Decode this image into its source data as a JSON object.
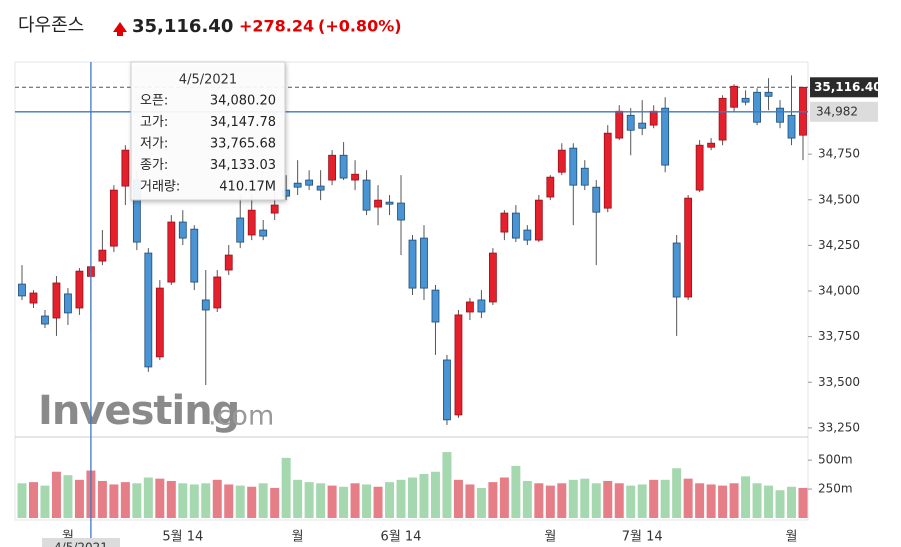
{
  "header": {
    "title": "다우존스",
    "change": "+278.24",
    "change_pct": "(+0.80%)"
  },
  "chart_data": {
    "type": "candlestick",
    "last_price": {
      "value": 35116.4,
      "label": "35,116.40"
    },
    "crosshair": {
      "value": 34982,
      "label": "34,982"
    },
    "tooltip": {
      "date": "4/5/2021",
      "rows": [
        {
          "label": "오픈:",
          "value": "34,080.20"
        },
        {
          "label": "고가:",
          "value": "34,147.78"
        },
        {
          "label": "저가:",
          "value": "33,765.68"
        },
        {
          "label": "종가:",
          "value": "34,133.03"
        },
        {
          "label": "거래량:",
          "value": "410.17M"
        }
      ]
    },
    "watermark": [
      "Investing",
      ".com"
    ],
    "categories": [
      null,
      null,
      null,
      null,
      "월",
      null,
      null,
      null,
      null,
      null,
      null,
      null,
      null,
      null,
      "5월 14",
      null,
      null,
      null,
      null,
      null,
      null,
      null,
      null,
      null,
      "월",
      null,
      null,
      null,
      null,
      null,
      null,
      null,
      null,
      "6월 14",
      null,
      null,
      null,
      null,
      null,
      null,
      null,
      null,
      null,
      null,
      null,
      null,
      "월",
      null,
      null,
      null,
      null,
      null,
      null,
      null,
      "7월 14",
      null,
      null,
      null,
      null,
      null,
      null,
      null,
      null,
      null,
      null,
      null,
      null,
      "월",
      null
    ],
    "open": [
      34038,
      33934,
      33863,
      33852,
      33984,
      33907,
      34080.2,
      34164,
      34246,
      34575,
      34608,
      34208,
      33639,
      34049,
      34378,
      34339,
      33951,
      33907,
      34115,
      34400,
      34307,
      34334,
      34427,
      34553,
      34591,
      34608,
      34575,
      34608,
      34744,
      34608,
      34608,
      34460,
      34487,
      34482,
      34279,
      34290,
      34005,
      33622,
      33321,
      33885,
      33951,
      33940,
      34323,
      34427,
      34334,
      34279,
      34515,
      34651,
      34783,
      34673,
      34569,
      34454,
      34838,
      34963,
      34920,
      34909,
      35002,
      34263,
      33967,
      34553,
      34788,
      34827,
      35007,
      35056,
      35089,
      35089,
      35002,
      34963,
      34854
    ],
    "high": [
      34142,
      34005,
      33896,
      34082,
      34016,
      34126,
      34147.78,
      34334,
      34580,
      34799,
      34662,
      34235,
      34060,
      34416,
      34443,
      34361,
      34115,
      34115,
      34252,
      34526,
      34526,
      34389,
      34580,
      34635,
      34717,
      34662,
      34662,
      34772,
      34816,
      34717,
      34662,
      34580,
      34526,
      34635,
      34307,
      34361,
      34033,
      33650,
      33896,
      33962,
      34005,
      34235,
      34443,
      34471,
      34361,
      34526,
      34635,
      34810,
      34810,
      34717,
      34608,
      34909,
      35018,
      35002,
      35046,
      35018,
      35062,
      34307,
      34526,
      34827,
      34838,
      35073,
      35133,
      35100,
      35111,
      35166,
      35046,
      35182,
      35111
    ],
    "low": [
      33951,
      33907,
      33797,
      33754,
      33814,
      33869,
      33765.68,
      34142,
      34213,
      34471,
      34224,
      33557,
      33622,
      34033,
      34252,
      34005,
      33485,
      33885,
      34088,
      34235,
      34279,
      34279,
      34389,
      34498,
      34526,
      34553,
      34498,
      34580,
      34608,
      34553,
      34416,
      34361,
      34416,
      34197,
      33978,
      33951,
      33650,
      33266,
      33305,
      33841,
      33852,
      33923,
      34279,
      34268,
      34252,
      34268,
      34498,
      34635,
      34361,
      34553,
      34142,
      34432,
      34827,
      34744,
      34854,
      34892,
      34651,
      33754,
      33951,
      34542,
      34772,
      34799,
      34980,
      35018,
      34909,
      34991,
      34892,
      34799,
      34717
    ],
    "close": [
      33973,
      33989,
      33819,
      34044,
      33880,
      34109,
      34133.03,
      34224,
      34553,
      34772,
      34268,
      33584,
      34016,
      34378,
      34290,
      34049,
      33896,
      34077,
      34197,
      34268,
      34443,
      34301,
      34471,
      34520,
      34569,
      34580,
      34553,
      34744,
      34619,
      34640,
      34443,
      34498,
      34476,
      34389,
      34016,
      34016,
      33830,
      33294,
      33869,
      33940,
      33885,
      34208,
      34427,
      34290,
      34279,
      34498,
      34624,
      34772,
      34580,
      34580,
      34432,
      34865,
      34985,
      34881,
      34892,
      34985,
      34690,
      33967,
      34509,
      34799,
      34810,
      35056,
      35122,
      35035,
      34925,
      35067,
      34925,
      34838,
      35116.4
    ],
    "volume": [
      300,
      310,
      280,
      400,
      370,
      330,
      410.17,
      320,
      290,
      310,
      300,
      350,
      340,
      320,
      300,
      290,
      300,
      330,
      290,
      280,
      270,
      300,
      260,
      520,
      330,
      310,
      300,
      280,
      270,
      300,
      290,
      270,
      310,
      330,
      350,
      380,
      400,
      570,
      330,
      290,
      260,
      310,
      350,
      450,
      320,
      300,
      280,
      300,
      330,
      340,
      300,
      320,
      300,
      280,
      290,
      330,
      330,
      430,
      340,
      300,
      290,
      280,
      300,
      360,
      300,
      280,
      240,
      270,
      260
    ],
    "ylim": [
      33200,
      35255
    ],
    "yticks": [
      {
        "value": 33250,
        "label": "33,250"
      },
      {
        "value": 33500,
        "label": "33,500"
      },
      {
        "value": 33750,
        "label": "33,750"
      },
      {
        "value": 34000,
        "label": "34,000"
      },
      {
        "value": 34250,
        "label": "34,250"
      },
      {
        "value": 34500,
        "label": "34,500"
      },
      {
        "value": 34750,
        "label": "34,750"
      }
    ],
    "volume_ylim": [
      0,
      700
    ],
    "volume_ticks": [
      {
        "value": 250,
        "label": "250m"
      },
      {
        "value": 500,
        "label": "500m"
      }
    ],
    "up_color": "#e3202c",
    "down_color": "#4a94d4",
    "volume_up_color": "#e57e86",
    "volume_down_color": "#a6d8b0",
    "crosshair_color": "#3d78c4"
  }
}
